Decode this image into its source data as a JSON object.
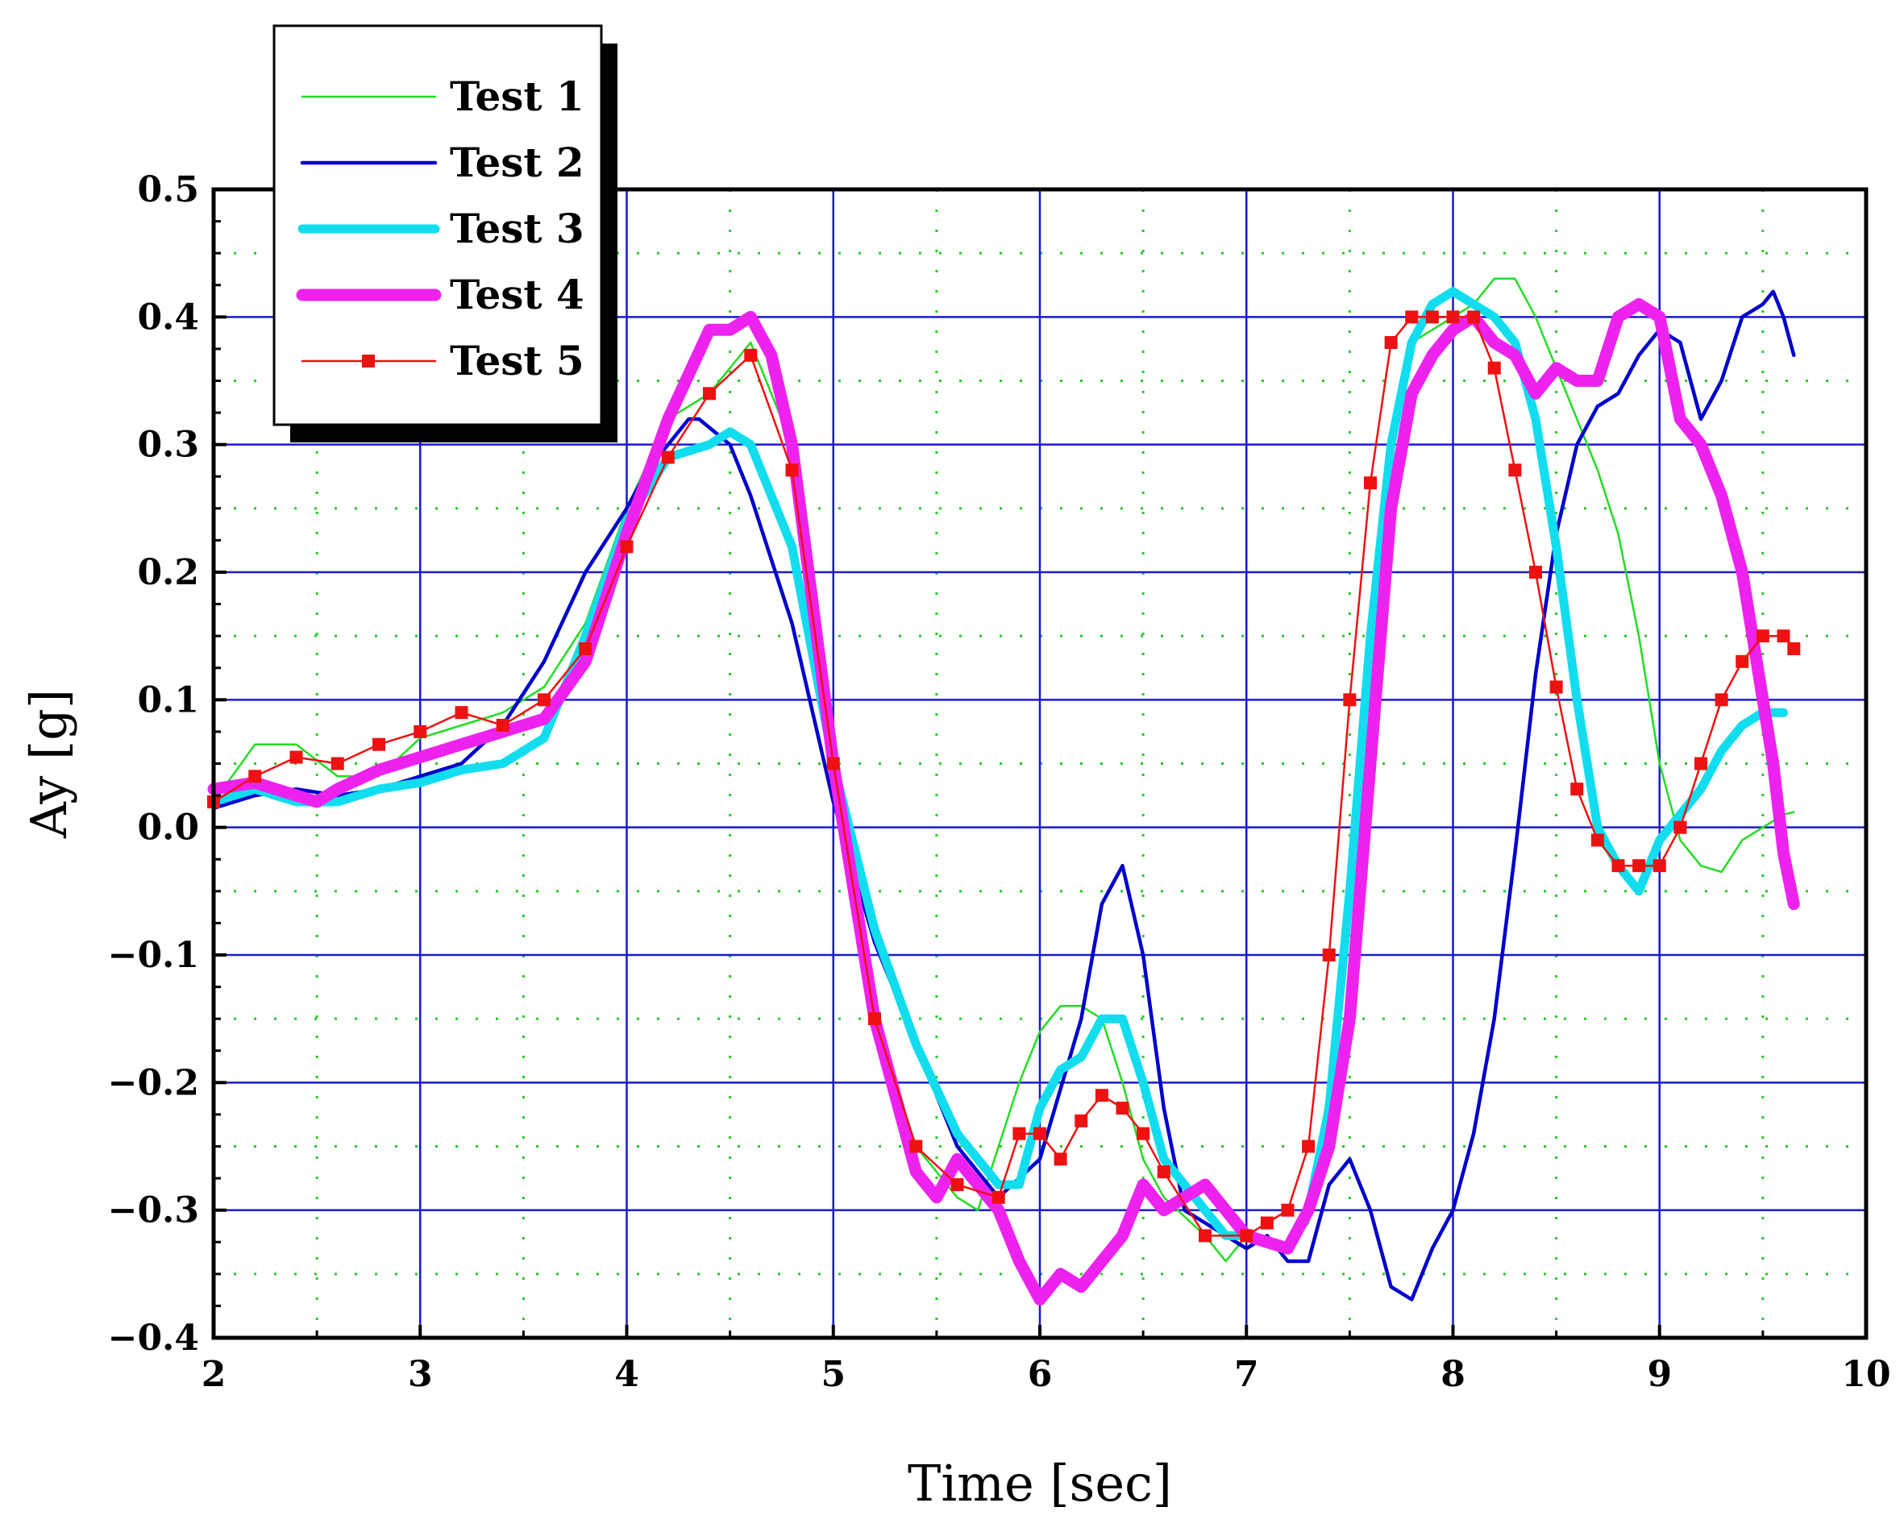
{
  "chart_data": {
    "type": "line",
    "title": "",
    "xlabel": "Time [sec]",
    "ylabel": "Ay [g]",
    "xlim": [
      2,
      10
    ],
    "ylim": [
      -0.4,
      0.5
    ],
    "xticks": [
      2,
      3,
      4,
      5,
      6,
      7,
      8,
      9,
      10
    ],
    "xtick_labels": [
      "2",
      "3",
      "4",
      "5",
      "6",
      "7",
      "8",
      "9",
      "10"
    ],
    "yticks": [
      -0.4,
      -0.3,
      -0.2,
      -0.1,
      0.0,
      0.1,
      0.2,
      0.3,
      0.4,
      0.5
    ],
    "ytick_labels": [
      "−0.4",
      "−0.3",
      "−0.2",
      "−0.1",
      "0.0",
      "0.1",
      "0.2",
      "0.3",
      "0.4",
      "0.5"
    ],
    "grid": "major solid blue, minor dotted green",
    "legend_position": "top-left",
    "series": [
      {
        "name": "Test 1",
        "color": "#22dd22",
        "x": [
          2.0,
          2.2,
          2.4,
          2.6,
          2.8,
          3.0,
          3.2,
          3.4,
          3.6,
          3.8,
          4.0,
          4.2,
          4.4,
          4.6,
          4.8,
          4.9,
          5.0,
          5.1,
          5.2,
          5.4,
          5.6,
          5.7,
          5.8,
          5.9,
          6.0,
          6.1,
          6.2,
          6.3,
          6.4,
          6.5,
          6.6,
          6.8,
          6.9,
          7.0,
          7.2,
          7.3,
          7.4,
          7.5,
          7.6,
          7.7,
          7.8,
          7.9,
          8.0,
          8.1,
          8.2,
          8.3,
          8.4,
          8.5,
          8.6,
          8.7,
          8.8,
          8.9,
          9.0,
          9.1,
          9.2,
          9.3,
          9.4,
          9.5,
          9.6,
          9.65
        ],
        "values": [
          0.02,
          0.065,
          0.065,
          0.04,
          0.04,
          0.07,
          0.08,
          0.09,
          0.11,
          0.16,
          0.25,
          0.32,
          0.34,
          0.38,
          0.3,
          0.2,
          0.05,
          -0.05,
          -0.15,
          -0.25,
          -0.29,
          -0.3,
          -0.25,
          -0.2,
          -0.16,
          -0.14,
          -0.14,
          -0.15,
          -0.2,
          -0.26,
          -0.29,
          -0.32,
          -0.34,
          -0.32,
          -0.33,
          -0.31,
          -0.2,
          -0.05,
          0.15,
          0.3,
          0.38,
          0.39,
          0.4,
          0.41,
          0.43,
          0.43,
          0.4,
          0.36,
          0.32,
          0.28,
          0.23,
          0.15,
          0.05,
          -0.01,
          -0.03,
          -0.035,
          -0.01,
          0.0,
          0.01,
          0.012
        ]
      },
      {
        "name": "Test 2",
        "color": "#0000cc",
        "x": [
          2.0,
          2.2,
          2.4,
          2.6,
          2.8,
          3.0,
          3.2,
          3.4,
          3.6,
          3.8,
          4.0,
          4.1,
          4.2,
          4.3,
          4.35,
          4.5,
          4.6,
          4.8,
          5.0,
          5.2,
          5.4,
          5.6,
          5.8,
          6.0,
          6.2,
          6.3,
          6.4,
          6.5,
          6.6,
          6.7,
          6.8,
          7.0,
          7.1,
          7.2,
          7.3,
          7.4,
          7.5,
          7.6,
          7.7,
          7.8,
          7.9,
          8.0,
          8.1,
          8.2,
          8.3,
          8.4,
          8.5,
          8.6,
          8.7,
          8.8,
          8.9,
          9.0,
          9.1,
          9.2,
          9.3,
          9.4,
          9.5,
          9.55,
          9.6,
          9.65
        ],
        "values": [
          0.015,
          0.025,
          0.03,
          0.025,
          0.03,
          0.04,
          0.05,
          0.08,
          0.13,
          0.2,
          0.25,
          0.28,
          0.3,
          0.32,
          0.32,
          0.3,
          0.26,
          0.16,
          0.02,
          -0.09,
          -0.17,
          -0.25,
          -0.29,
          -0.26,
          -0.15,
          -0.06,
          -0.03,
          -0.1,
          -0.22,
          -0.3,
          -0.31,
          -0.33,
          -0.32,
          -0.34,
          -0.34,
          -0.28,
          -0.26,
          -0.3,
          -0.36,
          -0.37,
          -0.33,
          -0.3,
          -0.24,
          -0.15,
          -0.02,
          0.12,
          0.23,
          0.3,
          0.33,
          0.34,
          0.37,
          0.39,
          0.38,
          0.32,
          0.35,
          0.4,
          0.41,
          0.42,
          0.4,
          0.37
        ]
      },
      {
        "name": "Test 3",
        "color": "#11ddee",
        "x": [
          2.0,
          2.2,
          2.4,
          2.6,
          2.8,
          3.0,
          3.2,
          3.4,
          3.6,
          3.8,
          4.0,
          4.2,
          4.4,
          4.5,
          4.6,
          4.8,
          5.0,
          5.2,
          5.4,
          5.6,
          5.8,
          5.9,
          6.0,
          6.1,
          6.2,
          6.3,
          6.4,
          6.5,
          6.6,
          6.8,
          6.9,
          7.0,
          7.2,
          7.3,
          7.4,
          7.5,
          7.6,
          7.7,
          7.8,
          7.9,
          8.0,
          8.1,
          8.2,
          8.3,
          8.4,
          8.5,
          8.6,
          8.7,
          8.8,
          8.9,
          9.0,
          9.1,
          9.2,
          9.3,
          9.4,
          9.5,
          9.6
        ],
        "values": [
          0.02,
          0.03,
          0.02,
          0.02,
          0.03,
          0.035,
          0.045,
          0.05,
          0.07,
          0.15,
          0.24,
          0.29,
          0.3,
          0.31,
          0.3,
          0.22,
          0.05,
          -0.08,
          -0.17,
          -0.24,
          -0.28,
          -0.28,
          -0.22,
          -0.19,
          -0.18,
          -0.15,
          -0.15,
          -0.2,
          -0.26,
          -0.3,
          -0.32,
          -0.32,
          -0.33,
          -0.3,
          -0.22,
          -0.05,
          0.15,
          0.3,
          0.38,
          0.41,
          0.42,
          0.41,
          0.4,
          0.38,
          0.32,
          0.22,
          0.1,
          0.0,
          -0.03,
          -0.05,
          -0.01,
          0.01,
          0.03,
          0.06,
          0.08,
          0.09,
          0.09
        ]
      },
      {
        "name": "Test 4",
        "color": "#ee22ee",
        "x": [
          2.0,
          2.2,
          2.4,
          2.5,
          2.6,
          2.8,
          3.0,
          3.2,
          3.4,
          3.6,
          3.8,
          4.0,
          4.2,
          4.4,
          4.5,
          4.6,
          4.7,
          4.8,
          5.0,
          5.2,
          5.4,
          5.5,
          5.6,
          5.8,
          5.9,
          6.0,
          6.1,
          6.2,
          6.3,
          6.4,
          6.5,
          6.6,
          6.8,
          6.9,
          7.0,
          7.2,
          7.3,
          7.4,
          7.5,
          7.6,
          7.7,
          7.8,
          7.9,
          8.0,
          8.1,
          8.2,
          8.3,
          8.4,
          8.5,
          8.6,
          8.7,
          8.8,
          8.9,
          9.0,
          9.1,
          9.2,
          9.3,
          9.4,
          9.5,
          9.55,
          9.6,
          9.65
        ],
        "values": [
          0.03,
          0.035,
          0.025,
          0.02,
          0.03,
          0.045,
          0.055,
          0.065,
          0.075,
          0.085,
          0.13,
          0.23,
          0.32,
          0.39,
          0.39,
          0.4,
          0.37,
          0.3,
          0.05,
          -0.15,
          -0.27,
          -0.29,
          -0.26,
          -0.3,
          -0.34,
          -0.37,
          -0.35,
          -0.36,
          -0.34,
          -0.32,
          -0.28,
          -0.3,
          -0.28,
          -0.3,
          -0.32,
          -0.33,
          -0.3,
          -0.25,
          -0.15,
          0.05,
          0.25,
          0.34,
          0.37,
          0.39,
          0.4,
          0.38,
          0.37,
          0.34,
          0.36,
          0.35,
          0.35,
          0.4,
          0.41,
          0.4,
          0.32,
          0.3,
          0.26,
          0.2,
          0.1,
          0.05,
          -0.02,
          -0.06
        ]
      },
      {
        "name": "Test 5",
        "color": "#ee1111",
        "x": [
          2.0,
          2.2,
          2.4,
          2.6,
          2.8,
          3.0,
          3.2,
          3.4,
          3.6,
          3.8,
          4.0,
          4.2,
          4.4,
          4.6,
          4.8,
          5.0,
          5.2,
          5.4,
          5.6,
          5.8,
          5.9,
          6.0,
          6.1,
          6.2,
          6.3,
          6.4,
          6.5,
          6.6,
          6.8,
          7.0,
          7.1,
          7.2,
          7.3,
          7.4,
          7.5,
          7.6,
          7.7,
          7.8,
          7.9,
          8.0,
          8.1,
          8.2,
          8.3,
          8.4,
          8.5,
          8.6,
          8.7,
          8.8,
          8.9,
          9.0,
          9.1,
          9.2,
          9.3,
          9.4,
          9.5,
          9.6,
          9.65
        ],
        "values": [
          0.02,
          0.04,
          0.055,
          0.05,
          0.065,
          0.075,
          0.09,
          0.08,
          0.1,
          0.14,
          0.22,
          0.29,
          0.34,
          0.37,
          0.28,
          0.05,
          -0.15,
          -0.25,
          -0.28,
          -0.29,
          -0.24,
          -0.24,
          -0.26,
          -0.23,
          -0.21,
          -0.22,
          -0.24,
          -0.27,
          -0.32,
          -0.32,
          -0.31,
          -0.3,
          -0.25,
          -0.1,
          0.1,
          0.27,
          0.38,
          0.4,
          0.4,
          0.4,
          0.4,
          0.36,
          0.28,
          0.2,
          0.11,
          0.03,
          -0.01,
          -0.03,
          -0.03,
          -0.03,
          0.0,
          0.05,
          0.1,
          0.13,
          0.15,
          0.15,
          0.14
        ]
      }
    ]
  }
}
